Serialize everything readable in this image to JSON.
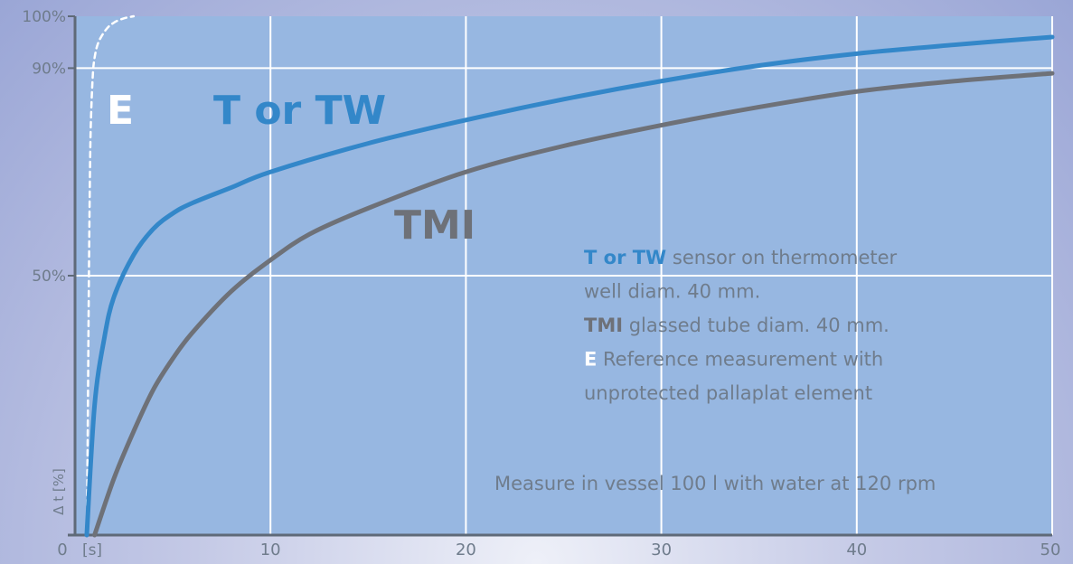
{
  "chart_data": {
    "type": "line",
    "xlabel": "[s]",
    "ylabel": "Δ t [%]",
    "xlim": [
      0,
      50
    ],
    "ylim": [
      0,
      100
    ],
    "x_ticks": [
      {
        "value": 0,
        "label": "0"
      },
      {
        "value": 10,
        "label": "10"
      },
      {
        "value": 20,
        "label": "20"
      },
      {
        "value": 30,
        "label": "30"
      },
      {
        "value": 40,
        "label": "40"
      },
      {
        "value": 50,
        "label": "50"
      }
    ],
    "y_ticks": [
      {
        "value": 50,
        "label": "50%"
      },
      {
        "value": 90,
        "label": "90%"
      },
      {
        "value": 100,
        "label": "100%"
      }
    ],
    "grid": true,
    "series": [
      {
        "name": "E",
        "color": "#ffffff",
        "style": "dashed",
        "x": [
          0.6,
          0.65,
          0.7,
          0.75,
          0.8,
          0.9,
          1.0,
          1.2,
          1.6,
          2.0,
          2.5,
          3.0
        ],
        "y": [
          0,
          20,
          45,
          65,
          78,
          88,
          92,
          95,
          97.5,
          98.8,
          99.6,
          100
        ]
      },
      {
        "name": "T or TW",
        "color": "#3387c9",
        "style": "solid",
        "x": [
          0.6,
          1.0,
          1.5,
          2.0,
          3.0,
          4.0,
          5.0,
          6.0,
          8.0,
          10,
          15,
          20,
          25,
          30,
          35,
          40,
          45,
          50
        ],
        "y": [
          0,
          25,
          38,
          46,
          54,
          59,
          62,
          64,
          67,
          70,
          75.5,
          80,
          84,
          87.5,
          90.5,
          92.8,
          94.5,
          96
        ]
      },
      {
        "name": "TMI",
        "color": "#6e7178",
        "style": "solid",
        "x": [
          1.0,
          2.0,
          3.0,
          4.0,
          5.0,
          6.0,
          8.0,
          10,
          12,
          15,
          20,
          25,
          30,
          35,
          40,
          45,
          50
        ],
        "y": [
          0,
          11,
          20,
          28,
          34,
          39,
          47,
          53,
          58,
          63,
          70,
          75,
          79,
          82.5,
          85.5,
          87.5,
          89
        ]
      }
    ],
    "curve_labels": [
      {
        "text": "E",
        "color": "#ffffff"
      },
      {
        "text": "T or TW",
        "color": "#3387c9"
      },
      {
        "text": "TMI",
        "color": "#6e7178"
      }
    ],
    "legend": {
      "placement": "right-center",
      "lines": [
        {
          "key": "T or TW",
          "key_color": "#3387c9",
          "text": " sensor on thermometer"
        },
        {
          "key": "",
          "key_color": "",
          "text": "well diam. 40 mm."
        },
        {
          "key": "TMI",
          "key_color": "#6e7178",
          "text": " glassed tube diam. 40 mm."
        },
        {
          "key": "E",
          "key_color": "#ffffff",
          "text": " Reference measurement with"
        },
        {
          "key": "",
          "key_color": "",
          "text": "unprotected pallaplat element"
        }
      ]
    },
    "annotation": "Measure in vessel 100 l with water at 120 rpm",
    "colors": {
      "plot_background": "#97b7e1",
      "grid": "#ffffff",
      "axis": "#5f6a78",
      "tick_text": "#6f7c8c",
      "legend_text": "#6f7c8c"
    }
  }
}
